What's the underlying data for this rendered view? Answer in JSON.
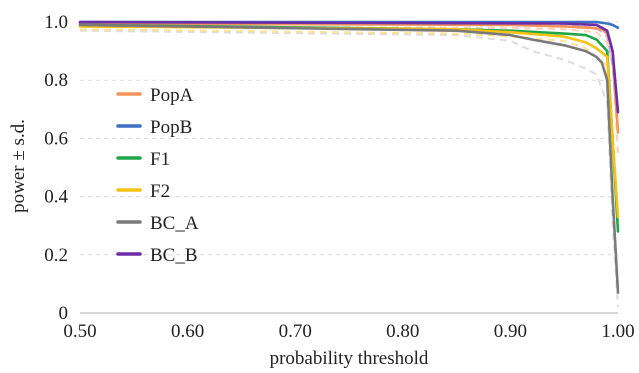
{
  "chart_data": {
    "type": "line",
    "title": "",
    "xlabel": "probability threshold",
    "ylabel": "power ± s.d.",
    "xlim": [
      0.5,
      1.0
    ],
    "ylim": [
      0,
      1.0
    ],
    "xticks": [
      "0.50",
      "0.60",
      "0.70",
      "0.80",
      "0.90",
      "1.00"
    ],
    "yticks": [
      "0",
      "0.2",
      "0.4",
      "0.6",
      "0.8",
      "1.0"
    ],
    "grid": "horizontal dashed",
    "legend_position": "left-center",
    "series": [
      {
        "name": "PopA",
        "color": "#f4935a",
        "x": [
          0.5,
          0.9,
          0.95,
          0.975,
          0.985,
          0.99,
          0.995,
          1.0
        ],
        "y": [
          0.995,
          0.99,
          0.985,
          0.98,
          0.975,
          0.96,
          0.9,
          0.62
        ]
      },
      {
        "name": "PopB",
        "color": "#3d6fc4",
        "x": [
          0.5,
          0.9,
          0.98,
          0.99,
          0.995,
          1.0
        ],
        "y": [
          1.0,
          1.0,
          1.0,
          0.995,
          0.99,
          0.98
        ]
      },
      {
        "name": "F1",
        "color": "#1fa64a",
        "x": [
          0.5,
          0.85,
          0.9,
          0.95,
          0.97,
          0.98,
          0.99,
          0.995,
          1.0
        ],
        "y": [
          0.99,
          0.975,
          0.97,
          0.96,
          0.955,
          0.94,
          0.9,
          0.6,
          0.28
        ]
      },
      {
        "name": "F2",
        "color": "#f5c311",
        "x": [
          0.5,
          0.85,
          0.9,
          0.95,
          0.97,
          0.98,
          0.99,
          0.995,
          1.0
        ],
        "y": [
          0.985,
          0.975,
          0.965,
          0.95,
          0.93,
          0.91,
          0.88,
          0.6,
          0.33
        ]
      },
      {
        "name": "BC_A",
        "color": "#7a7a7a",
        "x": [
          0.5,
          0.85,
          0.9,
          0.92,
          0.95,
          0.97,
          0.98,
          0.985,
          0.99,
          0.995,
          1.0
        ],
        "y": [
          0.99,
          0.97,
          0.955,
          0.94,
          0.92,
          0.9,
          0.88,
          0.86,
          0.8,
          0.4,
          0.07
        ]
      },
      {
        "name": "BC_B",
        "color": "#6a2ea8",
        "x": [
          0.5,
          0.95,
          0.98,
          0.99,
          0.995,
          1.0
        ],
        "y": [
          1.0,
          0.995,
          0.99,
          0.97,
          0.9,
          0.69
        ]
      }
    ],
    "error_bands": [
      {
        "style": "dashed",
        "color": "#dddddd",
        "x": [
          0.5,
          0.85,
          0.9,
          0.92,
          0.95,
          0.97,
          0.98,
          0.99,
          0.995,
          1.0
        ],
        "y": [
          0.97,
          0.955,
          0.935,
          0.9,
          0.87,
          0.84,
          0.82,
          0.72,
          0.3,
          0.02
        ]
      },
      {
        "style": "dashed",
        "color": "#fbe39a",
        "x": [
          0.5,
          0.85,
          0.9,
          0.95,
          0.97,
          0.98,
          0.99,
          0.995,
          1.0
        ],
        "y": [
          0.975,
          0.96,
          0.95,
          0.935,
          0.91,
          0.88,
          0.85,
          0.55,
          0.3
        ]
      },
      {
        "style": "dashed",
        "color": "#fbd4b8",
        "x": [
          0.5,
          0.9,
          0.95,
          0.98,
          0.99,
          0.995,
          1.0
        ],
        "y": [
          0.985,
          0.98,
          0.975,
          0.965,
          0.93,
          0.85,
          0.55
        ]
      },
      {
        "style": "dashed",
        "color": "#c5b0e4",
        "x": [
          0.5,
          0.95,
          0.98,
          0.99,
          0.995,
          1.0
        ],
        "y": [
          0.995,
          0.99,
          0.98,
          0.95,
          0.85,
          0.62
        ]
      }
    ]
  }
}
